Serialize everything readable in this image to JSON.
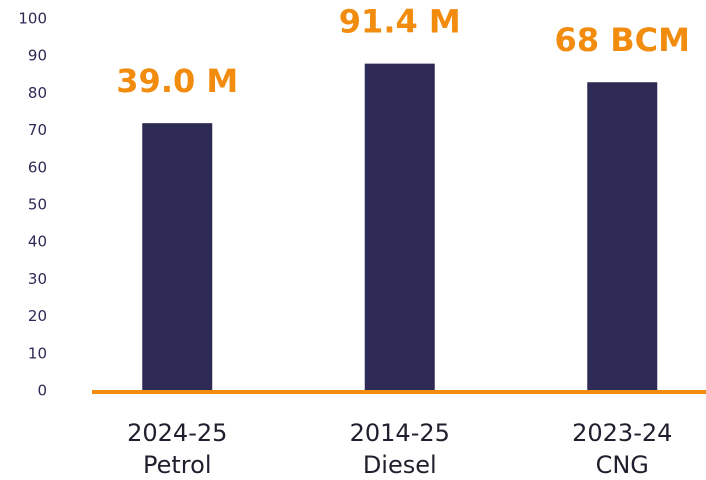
{
  "chart_data": {
    "type": "bar",
    "categories": [
      [
        "2024-25",
        "Petrol"
      ],
      [
        "2014-25",
        "Diesel"
      ],
      [
        "2023-24",
        "CNG"
      ]
    ],
    "values": [
      72,
      88,
      83
    ],
    "annotations": [
      "39.0 M",
      "91.4 M",
      "68 BCM"
    ],
    "color": "#2e2a56",
    "annotation_color": "#f28c0f",
    "ylim": [
      0,
      100
    ],
    "yticks": [
      0,
      10,
      20,
      30,
      40,
      50,
      60,
      70,
      80,
      90,
      100
    ],
    "grid": false
  }
}
